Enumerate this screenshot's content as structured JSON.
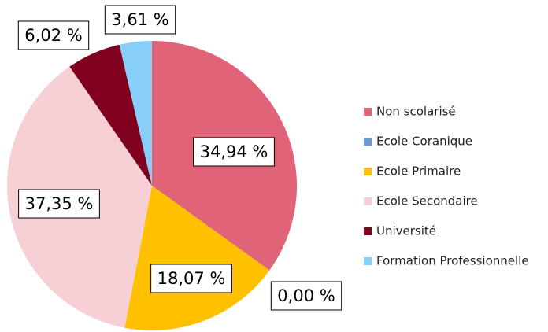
{
  "chart_data": {
    "type": "pie",
    "categories": [
      "Non scolarisé",
      "Ecole Coranique",
      "Ecole Primaire",
      "Ecole Secondaire",
      "Université",
      "Formation Professionnelle"
    ],
    "values": [
      34.94,
      0.0,
      18.07,
      37.35,
      6.02,
      3.61
    ],
    "value_labels": [
      "34,94 %",
      "0,00 %",
      "18,07 %",
      "37,35 %",
      "6,02 %",
      "3,61 %"
    ],
    "colors": [
      "#e06377",
      "#6b9bd2",
      "#ffc000",
      "#f7d0d6",
      "#800020",
      "#87cefa"
    ],
    "legend": "right"
  }
}
